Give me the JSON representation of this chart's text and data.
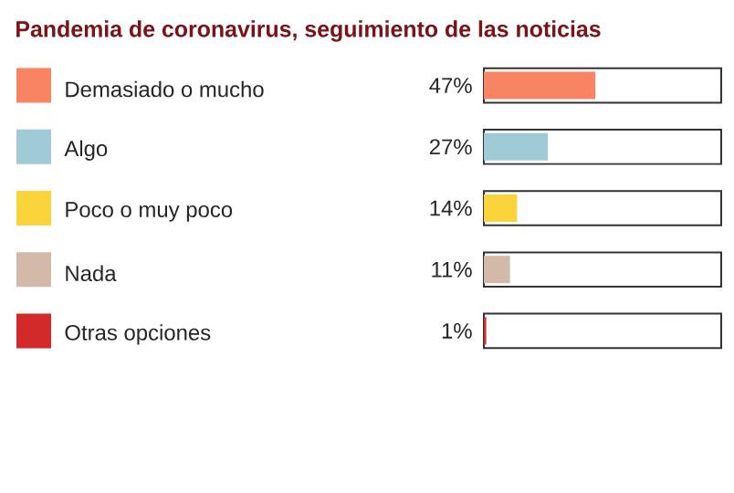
{
  "chart_data": {
    "type": "bar",
    "orientation": "horizontal",
    "title": "Pandemia de coronavirus, seguimiento de las noticias",
    "categories": [
      "Demasiado o mucho",
      "Algo",
      "Poco o muy poco",
      "Nada",
      "Otras opciones"
    ],
    "values": [
      47,
      27,
      14,
      11,
      1
    ],
    "value_labels": [
      "47%",
      "27%",
      "14%",
      "11%",
      "1%"
    ],
    "colors": [
      "#f98463",
      "#9ecbd6",
      "#fbd43c",
      "#d2b9a8",
      "#d22a2a"
    ],
    "xlim": [
      0,
      100
    ]
  }
}
